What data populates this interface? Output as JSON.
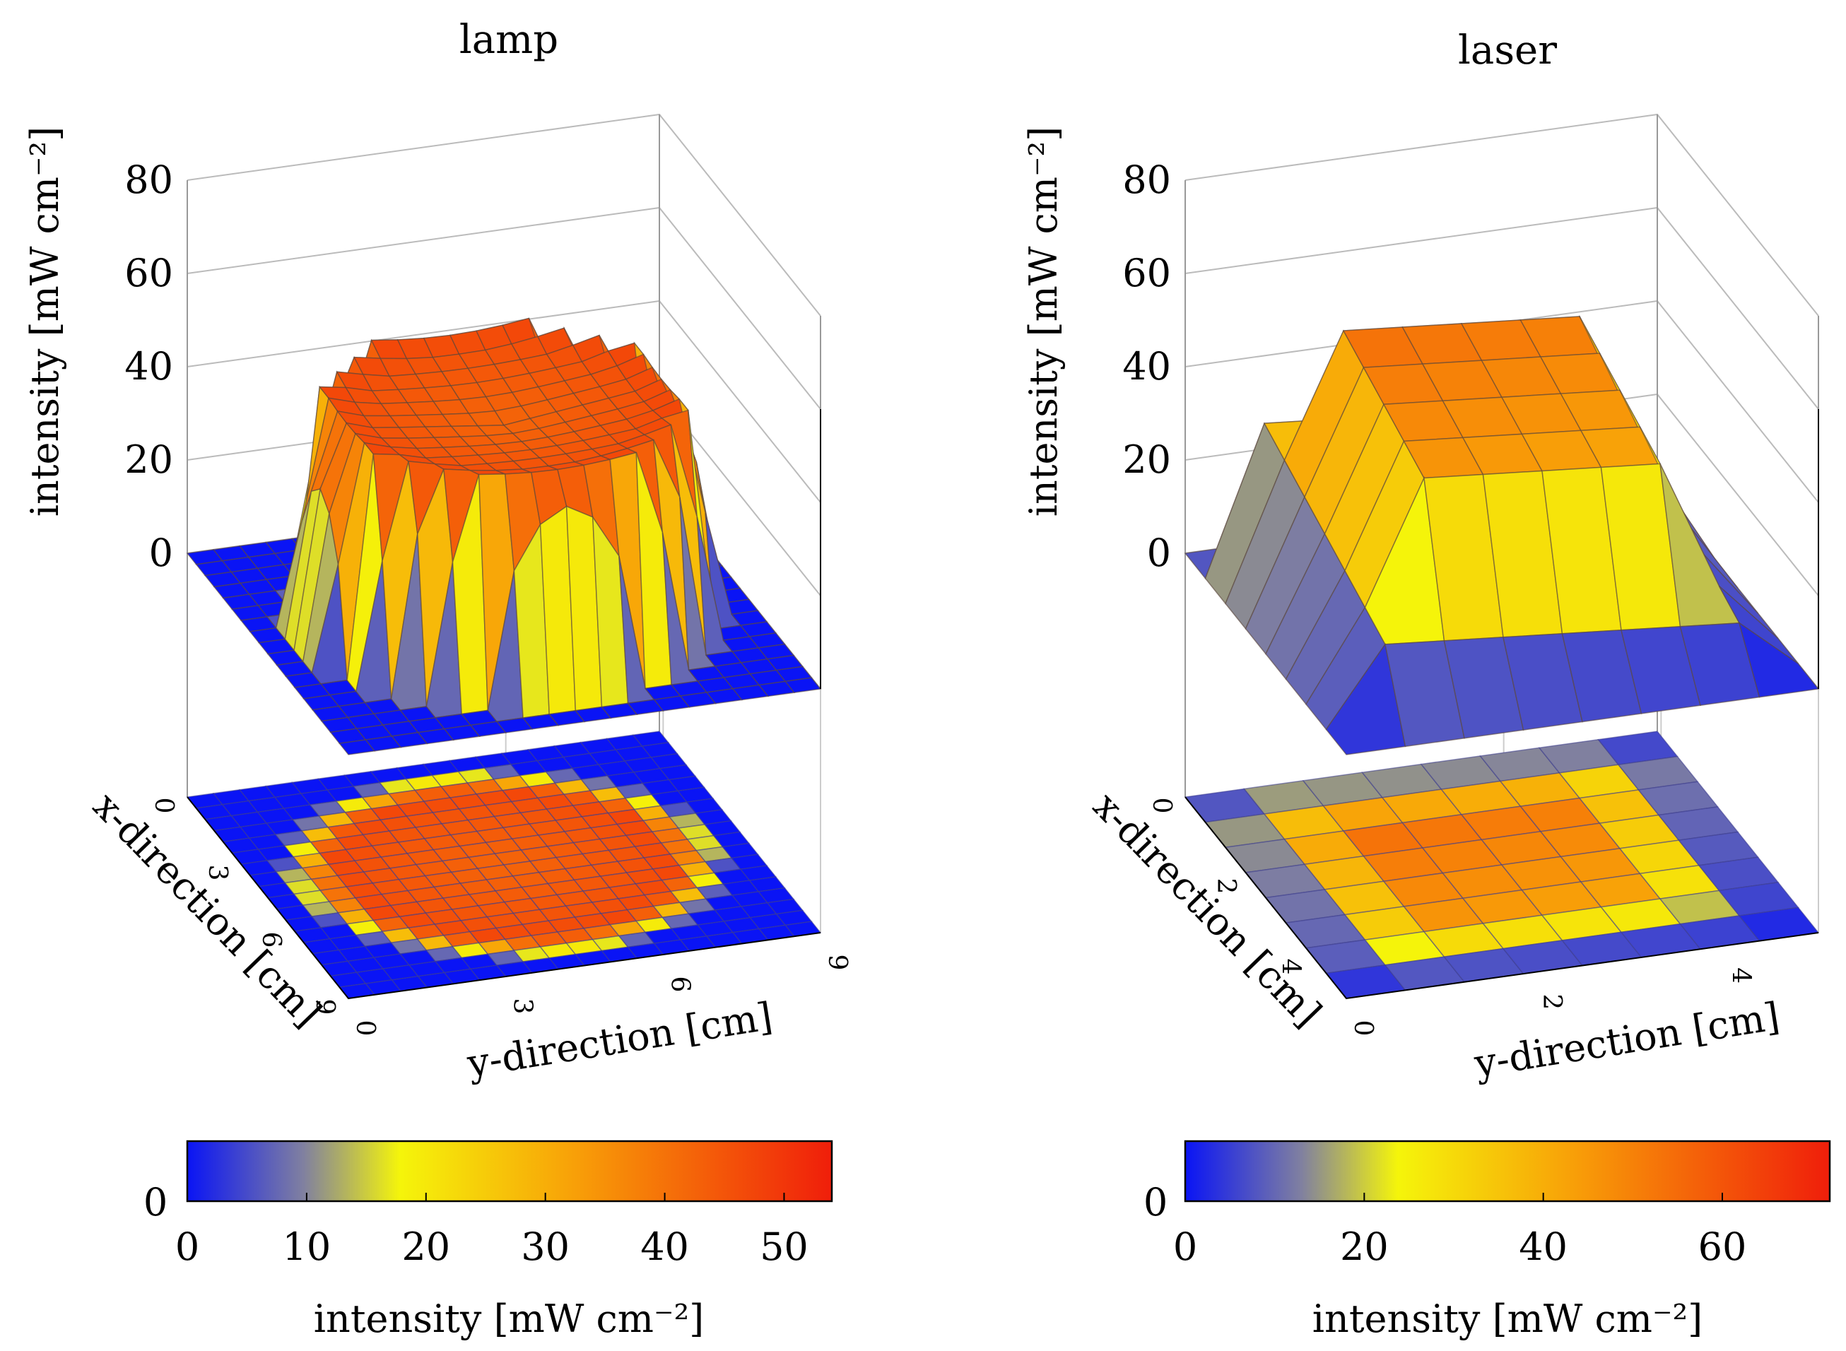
{
  "chart_data": [
    {
      "type": "surface3d",
      "title": "lamp",
      "xlabel": "x-direction [cm]",
      "ylabel": "y-direction [cm]",
      "zlabel": "intensity [mW cm⁻²]",
      "x_ticks": [
        0,
        3,
        6,
        9
      ],
      "y_ticks": [
        0,
        3,
        6,
        9
      ],
      "z_ticks": [
        0,
        20,
        40,
        60,
        80
      ],
      "xlim": [
        0,
        9
      ],
      "ylim": [
        0,
        9
      ],
      "zlim": [
        0,
        80
      ],
      "grid_n": 18,
      "peak": 48,
      "edge": 12,
      "projection": "heatmap contour on floor",
      "colorbar": {
        "ticks": [
          0,
          10,
          20,
          30,
          40,
          50
        ],
        "range": [
          0,
          54
        ],
        "zero_label": "0",
        "label": "intensity [mW cm⁻²]"
      }
    },
    {
      "type": "surface3d",
      "title": "laser",
      "xlabel": "x-direction [cm]",
      "ylabel": "y-direction [cm]",
      "zlabel": "intensity [mW cm⁻²]",
      "x_ticks": [
        0,
        2,
        4
      ],
      "y_ticks": [
        0,
        2,
        4
      ],
      "z_ticks": [
        0,
        20,
        40,
        60,
        80
      ],
      "xlim": [
        0,
        5
      ],
      "ylim": [
        0,
        5
      ],
      "zlim": [
        0,
        80
      ],
      "grid_n": 8,
      "peak": 72,
      "edge": 12,
      "projection": "heatmap contour on floor",
      "colorbar": {
        "ticks": [
          0,
          20,
          40,
          60
        ],
        "range": [
          0,
          72
        ],
        "zero_label": "0",
        "label": "intensity [mW cm⁻²]"
      }
    }
  ],
  "colors": {
    "low": "#0a14f5",
    "mid": "#f5f50a",
    "high": "#f01e0a",
    "axis": "#000000",
    "grid": "#bbbbbb"
  }
}
